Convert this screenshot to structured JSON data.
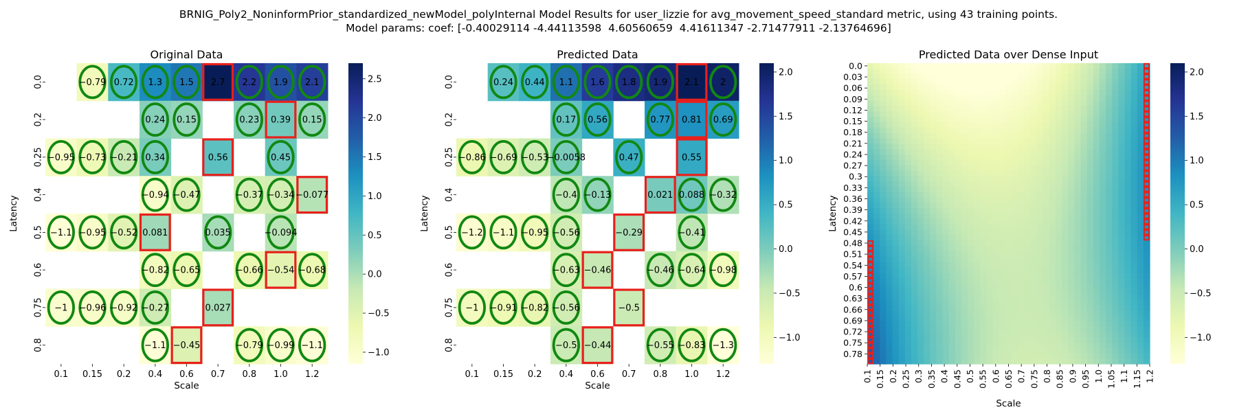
{
  "suptitle": {
    "line1": "BRNIG_Poly2_NoninformPrior_standardized_newModel_polyInternal Model Results for user_lizzie for avg_movement_speed_standard metric, using 43 training points.",
    "line2": "Model params: coef: [-0.40029114 -4.44113598  4.60560659  4.41611347 -2.71477911 -2.13764696]"
  },
  "chart_data": [
    {
      "type": "heatmap",
      "title": "Original Data",
      "xlabel": "Scale",
      "ylabel": "Latency",
      "x_categories": [
        "0.1",
        "0.15",
        "0.2",
        "0.4",
        "0.6",
        "0.7",
        "0.8",
        "1.0",
        "1.2"
      ],
      "y_categories": [
        "0.0",
        "0.2",
        "0.25",
        "0.4",
        "0.5",
        "0.6",
        "0.75",
        "0.8"
      ],
      "colorscale": "YlGnBu",
      "vmin": -1.15,
      "vmax": 2.7,
      "colorbar_ticks": [
        -1.0,
        -0.5,
        0.0,
        0.5,
        1.0,
        1.5,
        2.0,
        2.5
      ],
      "cells": [
        {
          "y": "0.0",
          "x": "0.15",
          "value": -0.79,
          "label": "-0.79",
          "marker": "ellipse"
        },
        {
          "y": "0.0",
          "x": "0.2",
          "value": 0.72,
          "label": "0.72",
          "marker": "ellipse"
        },
        {
          "y": "0.0",
          "x": "0.4",
          "value": 1.3,
          "label": "1.3",
          "marker": "ellipse"
        },
        {
          "y": "0.0",
          "x": "0.6",
          "value": 1.5,
          "label": "1.5",
          "marker": "ellipse"
        },
        {
          "y": "0.0",
          "x": "0.7",
          "value": 2.7,
          "label": "2.7",
          "marker": "rect"
        },
        {
          "y": "0.0",
          "x": "0.8",
          "value": 2.2,
          "label": "2.2",
          "marker": "ellipse"
        },
        {
          "y": "0.0",
          "x": "1.0",
          "value": 1.9,
          "label": "1.9",
          "marker": "ellipse"
        },
        {
          "y": "0.0",
          "x": "1.2",
          "value": 2.1,
          "label": "2.1",
          "marker": "ellipse"
        },
        {
          "y": "0.2",
          "x": "0.4",
          "value": 0.24,
          "label": "0.24",
          "marker": "ellipse"
        },
        {
          "y": "0.2",
          "x": "0.6",
          "value": 0.15,
          "label": "0.15",
          "marker": "ellipse"
        },
        {
          "y": "0.2",
          "x": "0.8",
          "value": 0.23,
          "label": "0.23",
          "marker": "ellipse"
        },
        {
          "y": "0.2",
          "x": "1.0",
          "value": 0.39,
          "label": "0.39",
          "marker": "rect"
        },
        {
          "y": "0.2",
          "x": "1.2",
          "value": 0.15,
          "label": "0.15",
          "marker": "ellipse"
        },
        {
          "y": "0.25",
          "x": "0.1",
          "value": -0.95,
          "label": "-0.95",
          "marker": "ellipse"
        },
        {
          "y": "0.25",
          "x": "0.15",
          "value": -0.73,
          "label": "-0.73",
          "marker": "ellipse"
        },
        {
          "y": "0.25",
          "x": "0.2",
          "value": -0.21,
          "label": "-0.21",
          "marker": "ellipse"
        },
        {
          "y": "0.25",
          "x": "0.4",
          "value": 0.34,
          "label": "0.34",
          "marker": "ellipse"
        },
        {
          "y": "0.25",
          "x": "0.7",
          "value": 0.56,
          "label": "0.56",
          "marker": "rect"
        },
        {
          "y": "0.25",
          "x": "1.0",
          "value": 0.45,
          "label": "0.45",
          "marker": "ellipse"
        },
        {
          "y": "0.4",
          "x": "0.4",
          "value": -0.94,
          "label": "-0.94",
          "marker": "ellipse"
        },
        {
          "y": "0.4",
          "x": "0.6",
          "value": -0.47,
          "label": "-0.47",
          "marker": "ellipse"
        },
        {
          "y": "0.4",
          "x": "0.8",
          "value": -0.37,
          "label": "-0.37",
          "marker": "ellipse"
        },
        {
          "y": "0.4",
          "x": "1.0",
          "value": -0.34,
          "label": "-0.34",
          "marker": "ellipse"
        },
        {
          "y": "0.4",
          "x": "1.2",
          "value": -0.077,
          "label": "-0.077",
          "marker": "rect"
        },
        {
          "y": "0.5",
          "x": "0.1",
          "value": -1.1,
          "label": "-1.1",
          "marker": "ellipse"
        },
        {
          "y": "0.5",
          "x": "0.15",
          "value": -0.95,
          "label": "-0.95",
          "marker": "ellipse"
        },
        {
          "y": "0.5",
          "x": "0.2",
          "value": -0.52,
          "label": "-0.52",
          "marker": "ellipse"
        },
        {
          "y": "0.5",
          "x": "0.4",
          "value": 0.081,
          "label": "0.081",
          "marker": "rect"
        },
        {
          "y": "0.5",
          "x": "0.7",
          "value": 0.035,
          "label": "0.035",
          "marker": "ellipse"
        },
        {
          "y": "0.5",
          "x": "1.0",
          "value": -0.094,
          "label": "-0.094",
          "marker": "ellipse"
        },
        {
          "y": "0.6",
          "x": "0.4",
          "value": -0.82,
          "label": "-0.82",
          "marker": "ellipse"
        },
        {
          "y": "0.6",
          "x": "0.6",
          "value": -0.65,
          "label": "-0.65",
          "marker": "ellipse"
        },
        {
          "y": "0.6",
          "x": "0.8",
          "value": -0.66,
          "label": "-0.66",
          "marker": "ellipse"
        },
        {
          "y": "0.6",
          "x": "1.0",
          "value": -0.54,
          "label": "-0.54",
          "marker": "rect"
        },
        {
          "y": "0.6",
          "x": "1.2",
          "value": -0.68,
          "label": "-0.68",
          "marker": "ellipse"
        },
        {
          "y": "0.75",
          "x": "0.1",
          "value": -1.0,
          "label": "-1",
          "marker": "ellipse"
        },
        {
          "y": "0.75",
          "x": "0.15",
          "value": -0.96,
          "label": "-0.96",
          "marker": "ellipse"
        },
        {
          "y": "0.75",
          "x": "0.2",
          "value": -0.92,
          "label": "-0.92",
          "marker": "ellipse"
        },
        {
          "y": "0.75",
          "x": "0.4",
          "value": -0.27,
          "label": "-0.27",
          "marker": "ellipse"
        },
        {
          "y": "0.75",
          "x": "0.7",
          "value": 0.027,
          "label": "0.027",
          "marker": "rect"
        },
        {
          "y": "0.8",
          "x": "0.4",
          "value": -1.1,
          "label": "-1.1",
          "marker": "ellipse"
        },
        {
          "y": "0.8",
          "x": "0.6",
          "value": -0.45,
          "label": "-0.45",
          "marker": "rect"
        },
        {
          "y": "0.8",
          "x": "0.8",
          "value": -0.79,
          "label": "-0.79",
          "marker": "ellipse"
        },
        {
          "y": "0.8",
          "x": "1.0",
          "value": -0.99,
          "label": "-0.99",
          "marker": "ellipse"
        },
        {
          "y": "0.8",
          "x": "1.2",
          "value": -1.1,
          "label": "-1.1",
          "marker": "ellipse"
        }
      ]
    },
    {
      "type": "heatmap",
      "title": "Predicted Data",
      "xlabel": "Scale",
      "ylabel": "Latency",
      "x_categories": [
        "0.1",
        "0.15",
        "0.2",
        "0.4",
        "0.6",
        "0.7",
        "0.8",
        "1.0",
        "1.2"
      ],
      "y_categories": [
        "0.0",
        "0.2",
        "0.25",
        "0.4",
        "0.5",
        "0.6",
        "0.75",
        "0.8"
      ],
      "colorscale": "YlGnBu",
      "vmin": -1.3,
      "vmax": 2.1,
      "colorbar_ticks": [
        -1.0,
        -0.5,
        0.0,
        0.5,
        1.0,
        1.5,
        2.0
      ],
      "cells": [
        {
          "y": "0.0",
          "x": "0.15",
          "value": 0.24,
          "label": "0.24",
          "marker": "ellipse"
        },
        {
          "y": "0.0",
          "x": "0.2",
          "value": 0.44,
          "label": "0.44",
          "marker": "ellipse"
        },
        {
          "y": "0.0",
          "x": "0.4",
          "value": 1.1,
          "label": "1.1",
          "marker": "ellipse"
        },
        {
          "y": "0.0",
          "x": "0.6",
          "value": 1.6,
          "label": "1.6",
          "marker": "ellipse"
        },
        {
          "y": "0.0",
          "x": "0.7",
          "value": 1.8,
          "label": "1.8",
          "marker": "ellipse"
        },
        {
          "y": "0.0",
          "x": "0.8",
          "value": 1.9,
          "label": "1.9",
          "marker": "ellipse"
        },
        {
          "y": "0.0",
          "x": "1.0",
          "value": 2.1,
          "label": "2.1",
          "marker": "rect"
        },
        {
          "y": "0.0",
          "x": "1.2",
          "value": 2.0,
          "label": "2",
          "marker": "ellipse"
        },
        {
          "y": "0.2",
          "x": "0.4",
          "value": 0.17,
          "label": "0.17",
          "marker": "ellipse"
        },
        {
          "y": "0.2",
          "x": "0.6",
          "value": 0.56,
          "label": "0.56",
          "marker": "ellipse"
        },
        {
          "y": "0.2",
          "x": "0.8",
          "value": 0.77,
          "label": "0.77",
          "marker": "ellipse"
        },
        {
          "y": "0.2",
          "x": "1.0",
          "value": 0.81,
          "label": "0.81",
          "marker": "rect"
        },
        {
          "y": "0.2",
          "x": "1.2",
          "value": 0.69,
          "label": "0.69",
          "marker": "ellipse"
        },
        {
          "y": "0.25",
          "x": "0.1",
          "value": -0.86,
          "label": "-0.86",
          "marker": "ellipse"
        },
        {
          "y": "0.25",
          "x": "0.15",
          "value": -0.69,
          "label": "-0.69",
          "marker": "ellipse"
        },
        {
          "y": "0.25",
          "x": "0.2",
          "value": -0.53,
          "label": "-0.53",
          "marker": "ellipse"
        },
        {
          "y": "0.25",
          "x": "0.4",
          "value": -0.0058,
          "label": "-0.0058",
          "marker": "ellipse"
        },
        {
          "y": "0.25",
          "x": "0.7",
          "value": 0.47,
          "label": "0.47",
          "marker": "ellipse"
        },
        {
          "y": "0.25",
          "x": "1.0",
          "value": 0.55,
          "label": "0.55",
          "marker": "rect"
        },
        {
          "y": "0.4",
          "x": "0.4",
          "value": -0.4,
          "label": "-0.4",
          "marker": "ellipse"
        },
        {
          "y": "0.4",
          "x": "0.6",
          "value": -0.13,
          "label": "-0.13",
          "marker": "ellipse"
        },
        {
          "y": "0.4",
          "x": "0.8",
          "value": 0.021,
          "label": "0.021",
          "marker": "rect"
        },
        {
          "y": "0.4",
          "x": "1.0",
          "value": 0.088,
          "label": "0.088",
          "marker": "ellipse"
        },
        {
          "y": "0.4",
          "x": "1.2",
          "value": -0.32,
          "label": "-0.32",
          "marker": "ellipse"
        },
        {
          "y": "0.5",
          "x": "0.1",
          "value": -1.2,
          "label": "-1.2",
          "marker": "ellipse"
        },
        {
          "y": "0.5",
          "x": "0.15",
          "value": -1.1,
          "label": "-1.1",
          "marker": "ellipse"
        },
        {
          "y": "0.5",
          "x": "0.2",
          "value": -0.95,
          "label": "-0.95",
          "marker": "ellipse"
        },
        {
          "y": "0.5",
          "x": "0.4",
          "value": -0.56,
          "label": "-0.56",
          "marker": "ellipse"
        },
        {
          "y": "0.5",
          "x": "0.7",
          "value": -0.29,
          "label": "-0.29",
          "marker": "rect"
        },
        {
          "y": "0.5",
          "x": "1.0",
          "value": -0.41,
          "label": "-0.41",
          "marker": "ellipse"
        },
        {
          "y": "0.6",
          "x": "0.4",
          "value": -0.63,
          "label": "-0.63",
          "marker": "ellipse"
        },
        {
          "y": "0.6",
          "x": "0.6",
          "value": -0.46,
          "label": "-0.46",
          "marker": "rect"
        },
        {
          "y": "0.6",
          "x": "0.8",
          "value": -0.46,
          "label": "-0.46",
          "marker": "ellipse"
        },
        {
          "y": "0.6",
          "x": "1.0",
          "value": -0.64,
          "label": "-0.64",
          "marker": "ellipse"
        },
        {
          "y": "0.6",
          "x": "1.2",
          "value": -0.98,
          "label": "-0.98",
          "marker": "ellipse"
        },
        {
          "y": "0.75",
          "x": "0.1",
          "value": -1.0,
          "label": "-1",
          "marker": "ellipse"
        },
        {
          "y": "0.75",
          "x": "0.15",
          "value": -0.91,
          "label": "-0.91",
          "marker": "ellipse"
        },
        {
          "y": "0.75",
          "x": "0.2",
          "value": -0.82,
          "label": "-0.82",
          "marker": "ellipse"
        },
        {
          "y": "0.75",
          "x": "0.4",
          "value": -0.56,
          "label": "-0.56",
          "marker": "ellipse"
        },
        {
          "y": "0.75",
          "x": "0.7",
          "value": -0.5,
          "label": "-0.5",
          "marker": "rect"
        },
        {
          "y": "0.8",
          "x": "0.4",
          "value": -0.5,
          "label": "-0.5",
          "marker": "ellipse"
        },
        {
          "y": "0.8",
          "x": "0.6",
          "value": -0.44,
          "label": "-0.44",
          "marker": "rect"
        },
        {
          "y": "0.8",
          "x": "0.8",
          "value": -0.55,
          "label": "-0.55",
          "marker": "ellipse"
        },
        {
          "y": "0.8",
          "x": "1.0",
          "value": -0.83,
          "label": "-0.83",
          "marker": "ellipse"
        },
        {
          "y": "0.8",
          "x": "1.2",
          "value": -1.3,
          "label": "-1.3",
          "marker": "ellipse"
        }
      ]
    },
    {
      "type": "heatmap",
      "title": "Predicted Data over Dense Input",
      "xlabel": "Scale",
      "ylabel": "Latency",
      "x_tick_labels": [
        "0.1",
        "0.15",
        "0.2",
        "0.25",
        "0.3",
        "0.35",
        "0.4",
        "0.45",
        "0.5",
        "0.55",
        "0.6",
        "0.65",
        "0.7",
        "0.75",
        "0.8",
        "0.85",
        "0.9",
        "0.95",
        "1.0",
        "1.05",
        "1.1",
        "1.15",
        "1.2"
      ],
      "y_tick_labels": [
        "0.0",
        "0.03",
        "0.06",
        "0.09",
        "0.12",
        "0.15",
        "0.18",
        "0.21",
        "0.24",
        "0.27",
        "0.3",
        "0.33",
        "0.36",
        "0.39",
        "0.42",
        "0.45",
        "0.48",
        "0.51",
        "0.54",
        "0.57",
        "0.6",
        "0.63",
        "0.66",
        "0.69",
        "0.72",
        "0.75",
        "0.78"
      ],
      "x_range": [
        0.1,
        1.2
      ],
      "y_range": [
        0.0,
        0.8
      ],
      "colorscale": "YlGnBu",
      "vmin": -1.3,
      "vmax": 2.1,
      "colorbar_ticks": [
        -1.0,
        -0.5,
        0.0,
        0.5,
        1.0,
        1.5,
        2.0
      ],
      "model_coef": [
        -0.40029114,
        -4.44113598,
        4.60560659,
        4.41611347,
        -2.71477911,
        -2.13764696
      ],
      "highlight": "per-row maximum marked with red box"
    }
  ],
  "colors": {
    "ellipse": "#118811",
    "rect": "#e8201c",
    "colorscale": [
      "#ffffd9",
      "#edf8b1",
      "#c7e9b4",
      "#7fcdbb",
      "#41b6c4",
      "#1d91c0",
      "#225ea8",
      "#253494",
      "#081d58"
    ]
  }
}
